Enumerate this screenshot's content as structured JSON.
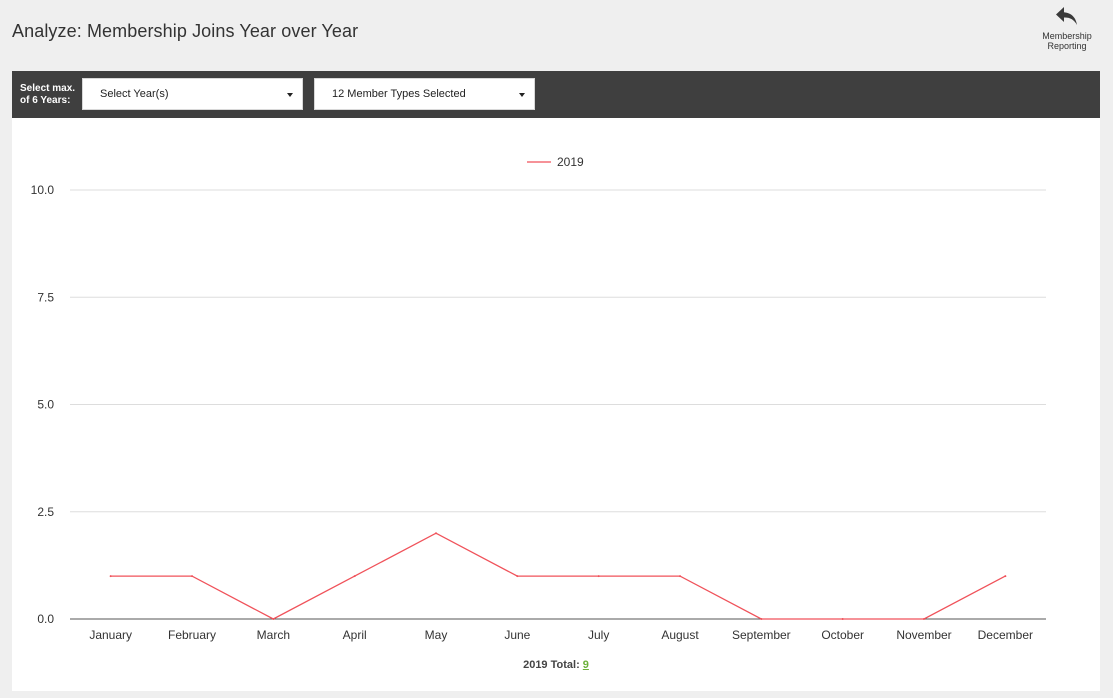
{
  "page": {
    "title": "Analyze: Membership Joins Year over Year"
  },
  "nav": {
    "back_label": "Membership Reporting",
    "back_icon": "reply-arrow-icon"
  },
  "filters": {
    "label": "Select max. of 6 Years:",
    "year_select_value": "Select Year(s)",
    "member_types_select_value": "12 Member Types Selected"
  },
  "colors": {
    "toolbar_bg": "#3f3f3f",
    "series_line": "#f0525a",
    "total_link": "#6bb13a"
  },
  "chart_data": {
    "type": "line",
    "categories": [
      "January",
      "February",
      "March",
      "April",
      "May",
      "June",
      "July",
      "August",
      "September",
      "October",
      "November",
      "December"
    ],
    "series": [
      {
        "name": "2019",
        "color": "#f0525a",
        "values": [
          1,
          1,
          0,
          1,
          2,
          1,
          1,
          1,
          0,
          0,
          0,
          1
        ]
      }
    ],
    "ylim": [
      0,
      10
    ],
    "yticks": [
      "0.0",
      "2.5",
      "5.0",
      "7.5",
      "10.0"
    ],
    "ytick_values": [
      0,
      2.5,
      5,
      7.5,
      10
    ],
    "grid": true,
    "legend_position": "top-center",
    "title": "",
    "xlabel": "",
    "ylabel": ""
  },
  "totals": {
    "label": "2019 Total:",
    "value": "9"
  }
}
